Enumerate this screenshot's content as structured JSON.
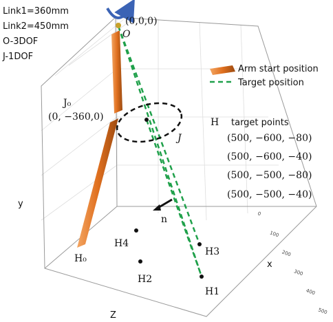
{
  "notes": [
    "Link1=360mm",
    "Link2=450mm",
    "O-3DOF",
    "J-1DOF"
  ],
  "origin": {
    "coords": "(0,0,0)",
    "label": "O"
  },
  "joint": {
    "start_label": "J₀",
    "start_coords": "(0, −360,0)",
    "label": "J"
  },
  "legend": {
    "arm": "Arm start position",
    "target": "Target position"
  },
  "targets": {
    "symbol": "H",
    "title": "target points",
    "points": [
      "(500, −600, −80)",
      "(500, −600, −40)",
      "(500, −500, −80)",
      "(500, −500, −40)"
    ]
  },
  "normal": "n",
  "points": {
    "h0": "H₀",
    "h1": "H1",
    "h2": "H2",
    "h3": "H3",
    "h4": "H4"
  },
  "axes": {
    "x": "x",
    "y": "y",
    "z": "Z",
    "xticks": [
      "0",
      "100",
      "200",
      "300",
      "400",
      "500"
    ]
  }
}
